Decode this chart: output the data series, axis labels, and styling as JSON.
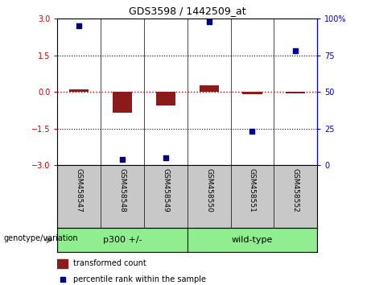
{
  "title": "GDS3598 / 1442509_at",
  "samples": [
    "GSM458547",
    "GSM458548",
    "GSM458549",
    "GSM458550",
    "GSM458551",
    "GSM458552"
  ],
  "transformed_counts": [
    0.12,
    -0.85,
    -0.55,
    0.28,
    -0.08,
    -0.05
  ],
  "percentile_ranks": [
    95,
    4,
    5,
    98,
    23,
    78
  ],
  "ylim_left": [
    -3,
    3
  ],
  "ylim_right": [
    0,
    100
  ],
  "yticks_left": [
    -3,
    -1.5,
    0,
    1.5,
    3
  ],
  "yticks_right": [
    0,
    25,
    50,
    75,
    100
  ],
  "groups": [
    {
      "label": "p300 +/-",
      "n": 3
    },
    {
      "label": "wild-type",
      "n": 3
    }
  ],
  "bar_color": "#8B1A1A",
  "dot_color": "#00008B",
  "bar_width": 0.45,
  "hline_color": "#CC0000",
  "dotted_color": "#000000",
  "background_plot": "#FFFFFF",
  "background_label": "#C8C8C8",
  "group_color": "#90EE90",
  "legend_bar_label": "transformed count",
  "legend_dot_label": "percentile rank within the sample",
  "genotype_label": "genotype/variation",
  "ylabel_left_color": "#CC0000",
  "ylabel_right_color": "#0000CC"
}
